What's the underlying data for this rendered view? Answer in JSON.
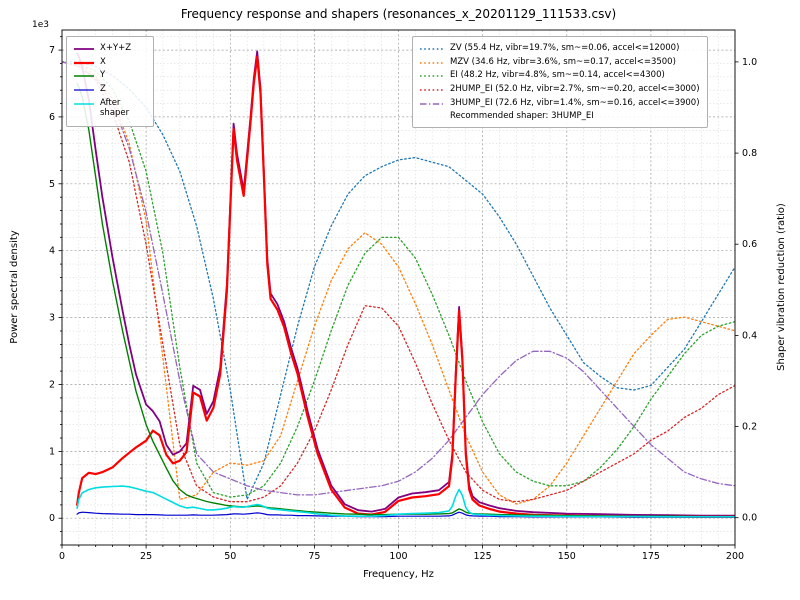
{
  "title": "Frequency response and shapers (resonances_x_20201129_111533.csv)",
  "axes": {
    "x": {
      "label": "Frequency, Hz",
      "lim": [
        0,
        200
      ],
      "major_step": 25,
      "minor_step": 5,
      "major_ticks": [
        0,
        25,
        50,
        75,
        100,
        125,
        150,
        175,
        200
      ]
    },
    "y_left": {
      "label": "Power spectral density",
      "offset_text": "1e3",
      "lim": [
        -400,
        7300
      ],
      "minor_step": 200,
      "major_ticks": [
        0,
        1000,
        2000,
        3000,
        4000,
        5000,
        6000,
        7000
      ],
      "tick_labels": [
        "0",
        "1",
        "2",
        "3",
        "4",
        "5",
        "6",
        "7"
      ]
    },
    "y_right": {
      "label": "Shaper vibration reduction (ratio)",
      "lim": [
        -0.06,
        1.07
      ],
      "major_ticks": [
        0,
        0.2,
        0.4,
        0.6,
        0.8,
        1.0
      ],
      "tick_labels": [
        "0.0",
        "0.2",
        "0.4",
        "0.6",
        "0.8",
        "1.0"
      ]
    }
  },
  "legend_psd": {
    "entries": [
      {
        "name": "xyz",
        "label": "X+Y+Z",
        "color": "#800080",
        "style": "solid",
        "width": 1.8
      },
      {
        "name": "x",
        "label": "X",
        "color": "#ff0000",
        "style": "solid",
        "width": 2.2
      },
      {
        "name": "y",
        "label": "Y",
        "color": "#008000",
        "style": "solid",
        "width": 1.4
      },
      {
        "name": "z",
        "label": "Z",
        "color": "#0000cd",
        "style": "solid",
        "width": 1.2
      },
      {
        "name": "after-shaper",
        "label": "After shaper",
        "color": "#00dde0",
        "style": "solid",
        "width": 1.6
      }
    ]
  },
  "legend_shapers": {
    "entries": [
      {
        "name": "zv",
        "label": "ZV (55.4 Hz, vibr=19.7%, sm~=0.06, accel<=12000)",
        "color": "#1f77b4",
        "style": "dotted"
      },
      {
        "name": "mzv",
        "label": "MZV (34.6 Hz, vibr=3.6%, sm~=0.17, accel<=3500)",
        "color": "#ff7f0e",
        "style": "dotted"
      },
      {
        "name": "ei",
        "label": "EI (48.2 Hz, vibr=4.8%, sm~=0.14, accel<=4300)",
        "color": "#2ca02c",
        "style": "dotted"
      },
      {
        "name": "2hump_ei",
        "label": "2HUMP_EI (52.0 Hz, vibr=2.7%, sm~=0.20, accel<=3000)",
        "color": "#d62728",
        "style": "dotted"
      },
      {
        "name": "3hump_ei",
        "label": "3HUMP_EI (72.6 Hz, vibr=1.4%, sm~=0.16, accel<=3900)",
        "color": "#9467bd",
        "style": "dashdot"
      }
    ],
    "note": "Recommended shaper: 3HUMP_EI"
  },
  "chart_data": {
    "type": "line",
    "title": "Frequency response and shapers (resonances_x_20201129_111533.csv)",
    "xlabel": "Frequency, Hz",
    "ylabel_left": "Power spectral density",
    "ylabel_right": "Shaper vibration reduction (ratio)",
    "xlim": [
      0,
      200
    ],
    "ylim_left": [
      -400,
      7300
    ],
    "ylim_right": [
      -0.06,
      1.07
    ],
    "grid": "both",
    "x_psd": [
      4.5,
      5,
      6,
      8,
      10,
      12,
      15,
      18,
      20,
      22,
      25,
      27,
      29,
      31,
      33,
      35,
      37,
      39,
      41,
      43,
      45,
      47,
      49,
      51,
      52,
      54,
      56,
      57,
      58,
      59,
      60,
      61,
      62,
      64,
      66,
      68,
      70,
      73,
      76,
      80,
      84,
      88,
      92,
      96,
      100,
      104,
      108,
      112,
      115,
      116,
      117,
      118,
      119,
      120,
      121,
      122,
      124,
      127,
      130,
      135,
      140,
      150,
      160,
      170,
      180,
      190,
      200
    ],
    "psd_series": [
      {
        "name": "xyz",
        "y": [
          6950,
          6900,
          6750,
          6250,
          5500,
          4800,
          3900,
          3100,
          2600,
          2150,
          1700,
          1600,
          1450,
          1100,
          950,
          1000,
          1120,
          1980,
          1920,
          1560,
          1750,
          2250,
          3500,
          5900,
          5450,
          4900,
          5980,
          6580,
          6980,
          6430,
          5180,
          3880,
          3360,
          3200,
          2940,
          2560,
          2240,
          1600,
          1030,
          490,
          210,
          120,
          100,
          140,
          310,
          370,
          390,
          420,
          540,
          960,
          2160,
          3160,
          2410,
          1010,
          490,
          330,
          240,
          190,
          150,
          110,
          90,
          70,
          60,
          50,
          45,
          40,
          40
        ]
      },
      {
        "name": "x",
        "y": [
          200,
          380,
          600,
          680,
          660,
          690,
          760,
          900,
          980,
          1060,
          1160,
          1310,
          1240,
          950,
          820,
          860,
          990,
          1880,
          1820,
          1460,
          1650,
          2150,
          3400,
          5820,
          5350,
          4820,
          5900,
          6500,
          6900,
          6350,
          5100,
          3800,
          3280,
          3120,
          2860,
          2480,
          2160,
          1520,
          960,
          430,
          160,
          70,
          55,
          95,
          260,
          310,
          330,
          360,
          480,
          900,
          2100,
          3100,
          2350,
          950,
          430,
          280,
          190,
          140,
          100,
          70,
          50,
          40,
          30,
          25,
          25,
          20,
          20
        ]
      },
      {
        "name": "y",
        "y": [
          6500,
          6450,
          6300,
          5800,
          5100,
          4400,
          3550,
          2800,
          2350,
          1900,
          1400,
          1150,
          950,
          750,
          560,
          430,
          350,
          310,
          280,
          250,
          230,
          210,
          190,
          180,
          175,
          170,
          175,
          180,
          185,
          180,
          170,
          160,
          155,
          145,
          135,
          125,
          115,
          100,
          90,
          75,
          65,
          60,
          55,
          55,
          60,
          60,
          60,
          65,
          70,
          80,
          110,
          140,
          120,
          90,
          75,
          70,
          65,
          60,
          55,
          50,
          45,
          40,
          35,
          30,
          30,
          25,
          25
        ]
      },
      {
        "name": "z",
        "y": [
          60,
          80,
          90,
          85,
          75,
          70,
          65,
          60,
          60,
          55,
          55,
          55,
          50,
          45,
          45,
          45,
          45,
          50,
          45,
          45,
          45,
          50,
          55,
          65,
          65,
          60,
          70,
          75,
          80,
          75,
          65,
          55,
          50,
          50,
          45,
          45,
          40,
          40,
          35,
          30,
          30,
          25,
          25,
          25,
          30,
          30,
          30,
          30,
          35,
          45,
          70,
          90,
          75,
          50,
          40,
          35,
          30,
          30,
          25,
          25,
          20,
          20,
          20,
          15,
          15,
          15,
          15
        ]
      },
      {
        "name": "after-shaper",
        "y": [
          150,
          280,
          380,
          430,
          455,
          465,
          475,
          480,
          470,
          445,
          405,
          385,
          335,
          285,
          235,
          185,
          155,
          165,
          145,
          125,
          125,
          135,
          150,
          175,
          170,
          165,
          185,
          195,
          205,
          195,
          175,
          150,
          140,
          130,
          120,
          110,
          100,
          85,
          65,
          45,
          35,
          30,
          30,
          40,
          60,
          70,
          75,
          85,
          110,
          180,
          330,
          430,
          340,
          160,
          90,
          65,
          55,
          45,
          40,
          35,
          30,
          28,
          25,
          25,
          22,
          22,
          22
        ]
      }
    ],
    "x_shapers": [
      0,
      5,
      10,
      15,
      20,
      25,
      30,
      35,
      40,
      45,
      50,
      55,
      60,
      65,
      70,
      75,
      80,
      85,
      90,
      95,
      100,
      105,
      110,
      115,
      120,
      125,
      130,
      135,
      140,
      145,
      150,
      155,
      160,
      165,
      170,
      175,
      180,
      185,
      190,
      195,
      200
    ],
    "shaper_series": [
      {
        "name": "zv",
        "y": [
          1.0,
          1.0,
          0.99,
          0.97,
          0.94,
          0.9,
          0.84,
          0.76,
          0.64,
          0.48,
          0.28,
          0.04,
          0.12,
          0.27,
          0.42,
          0.55,
          0.64,
          0.71,
          0.75,
          0.77,
          0.785,
          0.79,
          0.78,
          0.77,
          0.74,
          0.71,
          0.66,
          0.6,
          0.53,
          0.46,
          0.4,
          0.34,
          0.31,
          0.285,
          0.28,
          0.29,
          0.33,
          0.37,
          0.43,
          0.49,
          0.55
        ]
      },
      {
        "name": "mzv",
        "y": [
          1.0,
          0.995,
          0.97,
          0.92,
          0.82,
          0.65,
          0.35,
          0.04,
          0.05,
          0.1,
          0.12,
          0.115,
          0.125,
          0.18,
          0.3,
          0.42,
          0.52,
          0.59,
          0.625,
          0.6,
          0.55,
          0.47,
          0.38,
          0.28,
          0.18,
          0.1,
          0.05,
          0.03,
          0.04,
          0.07,
          0.12,
          0.18,
          0.24,
          0.3,
          0.36,
          0.4,
          0.435,
          0.44,
          0.43,
          0.42,
          0.41
        ]
      },
      {
        "name": "ei",
        "y": [
          1.0,
          0.995,
          0.98,
          0.94,
          0.87,
          0.76,
          0.58,
          0.33,
          0.12,
          0.055,
          0.045,
          0.05,
          0.07,
          0.12,
          0.2,
          0.3,
          0.41,
          0.51,
          0.58,
          0.615,
          0.615,
          0.57,
          0.49,
          0.4,
          0.3,
          0.21,
          0.14,
          0.1,
          0.08,
          0.07,
          0.07,
          0.08,
          0.11,
          0.15,
          0.2,
          0.26,
          0.31,
          0.36,
          0.4,
          0.42,
          0.43
        ]
      },
      {
        "name": "2hump_ei",
        "y": [
          1.0,
          0.99,
          0.96,
          0.89,
          0.78,
          0.6,
          0.38,
          0.16,
          0.07,
          0.045,
          0.035,
          0.035,
          0.045,
          0.07,
          0.12,
          0.19,
          0.28,
          0.38,
          0.465,
          0.46,
          0.42,
          0.34,
          0.25,
          0.17,
          0.1,
          0.06,
          0.04,
          0.035,
          0.04,
          0.05,
          0.06,
          0.08,
          0.1,
          0.12,
          0.14,
          0.17,
          0.19,
          0.22,
          0.24,
          0.27,
          0.29
        ]
      },
      {
        "name": "3hump_ei",
        "y": [
          1.0,
          0.99,
          0.965,
          0.91,
          0.81,
          0.67,
          0.49,
          0.3,
          0.14,
          0.1,
          0.085,
          0.07,
          0.06,
          0.055,
          0.05,
          0.05,
          0.055,
          0.06,
          0.065,
          0.07,
          0.08,
          0.1,
          0.13,
          0.17,
          0.22,
          0.27,
          0.31,
          0.345,
          0.365,
          0.365,
          0.35,
          0.32,
          0.28,
          0.24,
          0.2,
          0.16,
          0.13,
          0.1,
          0.085,
          0.075,
          0.07
        ]
      }
    ]
  }
}
